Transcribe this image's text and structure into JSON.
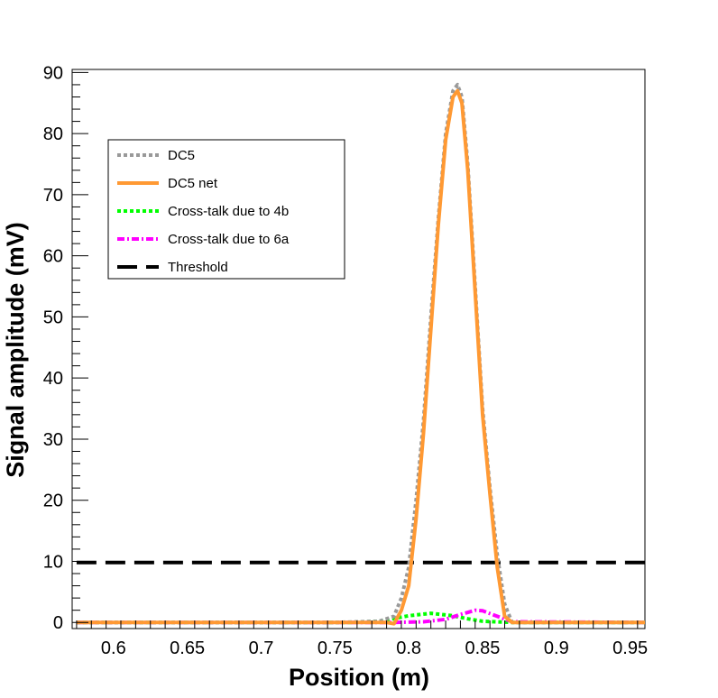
{
  "chart_data": {
    "type": "line",
    "xlabel": "Position (m)",
    "ylabel": "Signal amplitude (mV)",
    "xlim": [
      0.572,
      0.96
    ],
    "ylim": [
      -1,
      90.5
    ],
    "x_ticks": [
      0.6,
      0.65,
      0.7,
      0.75,
      0.8,
      0.85,
      0.9,
      0.95
    ],
    "x_tick_labels": [
      "0.6",
      "0.65",
      "0.7",
      "0.75",
      "0.8",
      "0.85",
      "0.9",
      "0.95"
    ],
    "y_ticks": [
      0,
      10,
      20,
      30,
      40,
      50,
      60,
      70,
      80,
      90
    ],
    "y_tick_labels": [
      "0",
      "10",
      "20",
      "30",
      "40",
      "50",
      "60",
      "70",
      "80",
      "90"
    ],
    "grid": false,
    "legend_position": "top-left",
    "series": [
      {
        "name": "DC5",
        "color": "#999999",
        "style": "dotted",
        "x": [
          0.575,
          0.75,
          0.78,
          0.79,
          0.795,
          0.8,
          0.805,
          0.81,
          0.815,
          0.82,
          0.825,
          0.83,
          0.833,
          0.836,
          0.84,
          0.845,
          0.85,
          0.855,
          0.86,
          0.865,
          0.87,
          0.875,
          0.96
        ],
        "y": [
          0,
          0,
          0.2,
          1,
          4,
          9,
          20,
          33,
          50,
          66,
          80,
          87,
          88,
          86,
          75,
          55,
          35,
          22,
          11,
          3,
          0,
          0,
          0
        ]
      },
      {
        "name": "DC5 net",
        "color": "#ff9933",
        "style": "solid",
        "x": [
          0.575,
          0.75,
          0.785,
          0.79,
          0.795,
          0.8,
          0.805,
          0.81,
          0.815,
          0.82,
          0.825,
          0.83,
          0.833,
          0.836,
          0.84,
          0.845,
          0.85,
          0.855,
          0.86,
          0.865,
          0.87,
          0.875,
          0.96
        ],
        "y": [
          0,
          0,
          0,
          -0.2,
          2,
          6,
          17,
          31,
          48,
          65,
          79,
          86,
          87,
          85,
          74,
          54,
          34,
          21,
          9,
          1,
          0,
          0,
          0
        ]
      },
      {
        "name": "Cross-talk due to 4b",
        "color": "#00ff00",
        "style": "dotted",
        "x": [
          0.575,
          0.76,
          0.78,
          0.8,
          0.815,
          0.83,
          0.84,
          0.85,
          0.87,
          0.96
        ],
        "y": [
          0,
          0,
          0.2,
          1.1,
          1.5,
          1.1,
          0.6,
          0.2,
          0,
          0
        ]
      },
      {
        "name": "Cross-talk due to 6a",
        "color": "#ff00ff",
        "style": "dashdot",
        "x": [
          0.575,
          0.79,
          0.81,
          0.825,
          0.835,
          0.845,
          0.85,
          0.86,
          0.87,
          0.96
        ],
        "y": [
          0,
          0,
          0.1,
          0.5,
          1.3,
          2.0,
          1.9,
          1.0,
          0.1,
          0
        ]
      },
      {
        "name": "Threshold",
        "color": "#000000",
        "style": "dashed",
        "x": [
          0.575,
          0.96
        ],
        "y": [
          9.8,
          9.8
        ]
      }
    ]
  }
}
